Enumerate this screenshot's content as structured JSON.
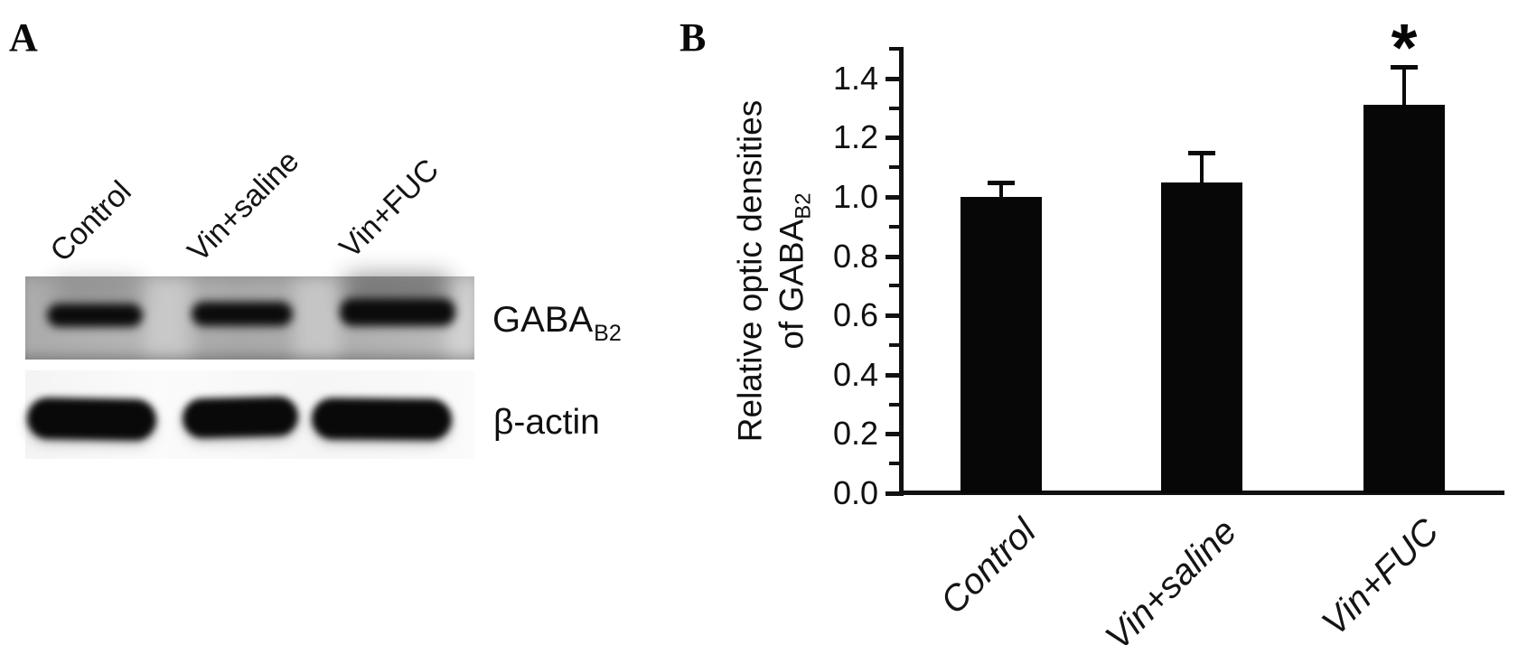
{
  "panel_a": {
    "letter": "A",
    "lane_labels": [
      "Control",
      "Vin+saline",
      "Vin+FUC"
    ],
    "blots": [
      {
        "label": "GABA",
        "subscript": "B2",
        "bands": 3
      },
      {
        "label": "β-actin",
        "bands": 3
      }
    ]
  },
  "panel_b": {
    "letter": "B"
  },
  "chart_data": {
    "type": "bar",
    "categories": [
      "Control",
      "Vin+saline",
      "Vin+FUC"
    ],
    "values": [
      1.0,
      1.05,
      1.31
    ],
    "errors_plus": [
      0.05,
      0.1,
      0.13
    ],
    "significance": [
      "",
      "",
      "*"
    ],
    "ylabel_line1": "Relative optic densities",
    "ylabel_line2": "of GABA",
    "ylabel_subscript": "B2",
    "ytick_labels": [
      "0.0",
      "0.2",
      "0.4",
      "0.6",
      "0.8",
      "1.0",
      "1.2",
      "1.4"
    ],
    "ylim": [
      0.0,
      1.5
    ],
    "minor_tick_step": 0.1,
    "bar_color": "#070707",
    "grid": false,
    "legend": null
  }
}
